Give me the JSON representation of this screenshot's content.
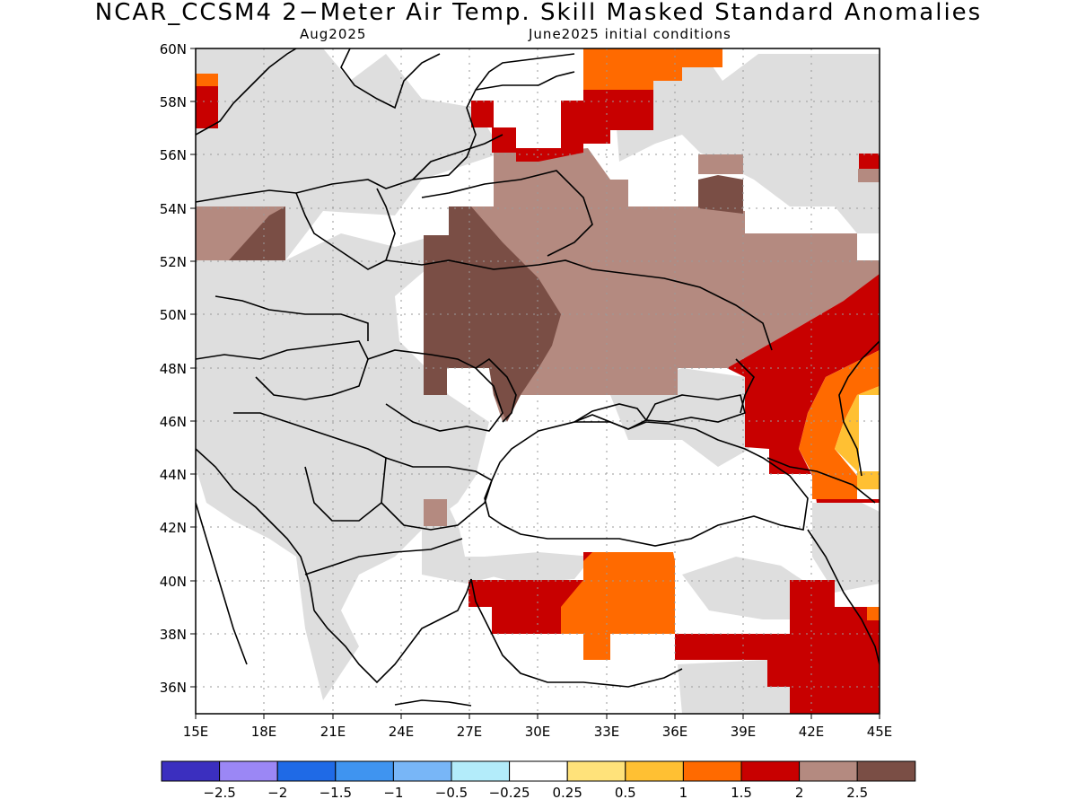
{
  "title": "NCAR_CCSM4 2−Meter Air Temp. Skill Masked Standard Anomalies",
  "subtitle_left": "Aug2025",
  "subtitle_right": "June2025 initial conditions",
  "map": {
    "lon_range": [
      15,
      45
    ],
    "lat_range": [
      35,
      60
    ],
    "lon_ticks": [
      "15E",
      "18E",
      "21E",
      "24E",
      "27E",
      "30E",
      "33E",
      "36E",
      "39E",
      "42E",
      "45E"
    ],
    "lat_ticks": [
      "60N",
      "58N",
      "56N",
      "54N",
      "52N",
      "50N",
      "48N",
      "46N",
      "44N",
      "42N",
      "40N",
      "38N",
      "36N"
    ],
    "grid_dotted": true
  },
  "colorbar": {
    "colors": [
      "#3b2fbf",
      "#9b87f5",
      "#1f6ae6",
      "#3f94f0",
      "#78b6f7",
      "#b3ecfa",
      "#ffffff",
      "#ffe27a",
      "#ffc033",
      "#ff6a00",
      "#c80000",
      "#b48a80",
      "#7a4e45"
    ],
    "labels": [
      "−2.5",
      "−2",
      "−1.5",
      "−1",
      "−0.5",
      "−0.25",
      "0.25",
      "0.5",
      "1",
      "1.5",
      "2",
      "2.5"
    ]
  },
  "anomaly_colors": {
    "grey": "#dedede",
    "light_brown": "#b48a80",
    "dark_brown": "#7a4e45",
    "red": "#c80000",
    "orange": "#ff6a00",
    "light_orange": "#ffc033",
    "yellow": "#ffe27a"
  }
}
